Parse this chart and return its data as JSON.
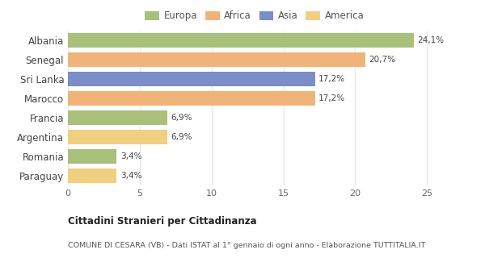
{
  "categories": [
    "Albania",
    "Senegal",
    "Sri Lanka",
    "Marocco",
    "Francia",
    "Argentina",
    "Romania",
    "Paraguay"
  ],
  "values": [
    24.1,
    20.7,
    17.2,
    17.2,
    6.9,
    6.9,
    3.4,
    3.4
  ],
  "colors": [
    "#a8c07a",
    "#f0b47a",
    "#7b8ec8",
    "#f0b47a",
    "#a8c07a",
    "#f0d080",
    "#a8c07a",
    "#f0d080"
  ],
  "labels": [
    "24,1%",
    "20,7%",
    "17,2%",
    "17,2%",
    "6,9%",
    "6,9%",
    "3,4%",
    "3,4%"
  ],
  "legend": [
    {
      "label": "Europa",
      "color": "#a8c07a"
    },
    {
      "label": "Africa",
      "color": "#f0b47a"
    },
    {
      "label": "Asia",
      "color": "#7b8ec8"
    },
    {
      "label": "America",
      "color": "#f0d080"
    }
  ],
  "xlim": [
    0,
    26
  ],
  "xticks": [
    0,
    5,
    10,
    15,
    20,
    25
  ],
  "title": "Cittadini Stranieri per Cittadinanza",
  "subtitle": "COMUNE DI CESARA (VB) - Dati ISTAT al 1° gennaio di ogni anno - Elaborazione TUTTITALIA.IT",
  "background_color": "#ffffff",
  "grid_color": "#e8e8e8"
}
